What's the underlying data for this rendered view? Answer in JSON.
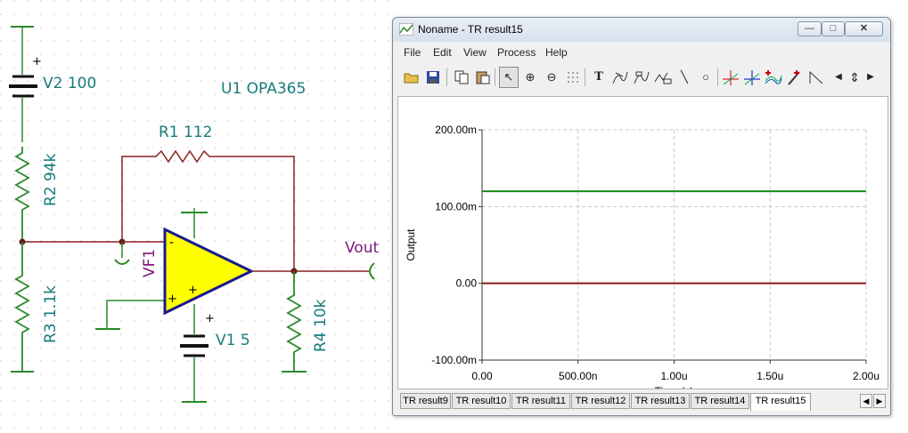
{
  "schematic": {
    "components": {
      "v2": "V2 100",
      "r2": "R2 94k",
      "r3": "R3 1.1k",
      "u1": "U1 OPA365",
      "r1": "R1 112",
      "vf1": "VF1",
      "v1": "V1 5",
      "r4": "R4 10k",
      "vout": "Vout"
    },
    "opamp_minus": "-",
    "opamp_plus": "+",
    "opamp_plus_inner": "+",
    "v2_polarity": "+",
    "v1_polarity": "+"
  },
  "window": {
    "title": "Noname - TR result15",
    "buttons": {
      "minimize": "—",
      "maximize": "□",
      "close": "✕"
    },
    "menu": [
      "File",
      "Edit",
      "View",
      "Process",
      "Help"
    ],
    "tabs": [
      "TR result9",
      "TR result10",
      "TR result11",
      "TR result12",
      "TR result13",
      "TR result14",
      "TR result15"
    ],
    "active_tab": "TR result15",
    "tab_scroll": {
      "left": "◀",
      "right": "▶"
    }
  },
  "toolbar": {
    "icons": [
      "open-icon",
      "save-icon",
      "copy-icon",
      "paste-icon",
      "select-arrow-icon",
      "zoom-in-icon",
      "zoom-100-icon",
      "grid-icon",
      "text-tool-icon",
      "curve-label-icon",
      "curve-label-2-icon",
      "axis-label-icon",
      "line-tool-icon",
      "circle-tool-icon",
      "cursor-a-icon",
      "cursor-b-icon",
      "add-curve-icon",
      "pen-icon",
      "marker-icon",
      "scroll-left-icon",
      "scroll-updown-icon",
      "scroll-right-icon"
    ],
    "glyphs": {
      "select": "↖",
      "zoom_in": "⊕",
      "zoom_100": "⊖",
      "text": "T",
      "line": "╲",
      "circle": "○",
      "left": "◀",
      "updown": "⇕",
      "right": "▶"
    }
  },
  "chart_data": {
    "type": "line",
    "title": "",
    "xlabel": "Time (s)",
    "ylabel": "Output",
    "xlim": [
      0,
      2e-06
    ],
    "ylim": [
      -0.1,
      0.2
    ],
    "x_ticks": [
      "0.00",
      "500.00n",
      "1.00u",
      "1.50u",
      "2.00u"
    ],
    "x_tick_values": [
      0,
      5e-07,
      1e-06,
      1.5e-06,
      2e-06
    ],
    "y_ticks": [
      "200.00m",
      "100.00m",
      "0.00",
      "-100.00m"
    ],
    "y_tick_values": [
      0.2,
      0.1,
      0,
      -0.1
    ],
    "grid": true,
    "series": [
      {
        "color": "#1a8a1a",
        "x": [
          0,
          2e-06
        ],
        "values": [
          0.12,
          0.12
        ]
      },
      {
        "color": "#8b1a1a",
        "x": [
          0,
          2e-06
        ],
        "values": [
          0,
          0
        ]
      }
    ]
  },
  "colors": {
    "wire": "#8b2020",
    "ground": "#2a8a2a",
    "label": "#177b7b",
    "opamp_fill": "#ffff00",
    "opamp_outline": "#1a1a8a"
  }
}
